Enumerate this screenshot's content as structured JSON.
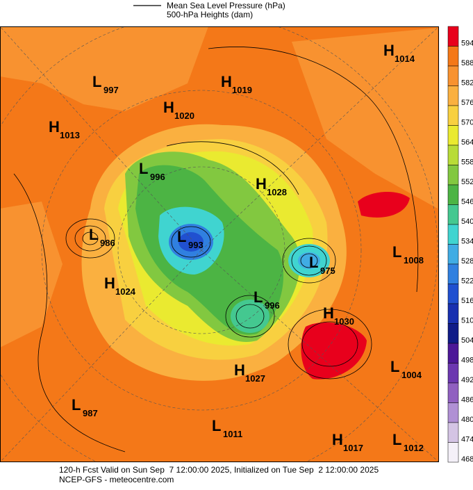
{
  "legend": {
    "line": "Mean Sea Level Pressure (hPa)",
    "fill": "500-hPa Heights (dam)"
  },
  "colorbar": {
    "labels": [
      "594",
      "588",
      "582",
      "576",
      "570",
      "564",
      "558",
      "552",
      "546",
      "540",
      "534",
      "528",
      "522",
      "516",
      "510",
      "504",
      "498",
      "492",
      "486",
      "480",
      "474",
      "468"
    ],
    "colors": [
      "#e8001c",
      "#f47818",
      "#f89230",
      "#fab040",
      "#f8d040",
      "#eaea30",
      "#b8dc38",
      "#82c840",
      "#4cb444",
      "#44c890",
      "#40d4d0",
      "#40ace4",
      "#3080e0",
      "#2050d0",
      "#1830b0",
      "#101c88",
      "#4c1898",
      "#6c38b0",
      "#9060c0",
      "#b090d4",
      "#d4c4e4",
      "#f4f0f8"
    ]
  },
  "centers": [
    {
      "kind": "H",
      "value": "1014"
    },
    {
      "kind": "L",
      "value": "997"
    },
    {
      "kind": "H",
      "value": "1019"
    },
    {
      "kind": "H",
      "value": "1020"
    },
    {
      "kind": "H",
      "value": "1013"
    },
    {
      "kind": "L",
      "value": "996"
    },
    {
      "kind": "H",
      "value": "1028"
    },
    {
      "kind": "L",
      "value": "986"
    },
    {
      "kind": "L",
      "value": "993"
    },
    {
      "kind": "L",
      "value": "975"
    },
    {
      "kind": "L",
      "value": "1008"
    },
    {
      "kind": "H",
      "value": "1024"
    },
    {
      "kind": "L",
      "value": "996"
    },
    {
      "kind": "H",
      "value": "1030"
    },
    {
      "kind": "L",
      "value": "1004"
    },
    {
      "kind": "H",
      "value": "1027"
    },
    {
      "kind": "L",
      "value": "987"
    },
    {
      "kind": "L",
      "value": "1011"
    },
    {
      "kind": "H",
      "value": "1017"
    },
    {
      "kind": "L",
      "value": "1012"
    }
  ],
  "footer": [
    "120-h Fcst Valid on Sun Sep  7 12:00:00 2025, Initialized on Tue Sep  2 12:00:00 2025",
    "NCEP-GFS - meteocentre.com"
  ]
}
